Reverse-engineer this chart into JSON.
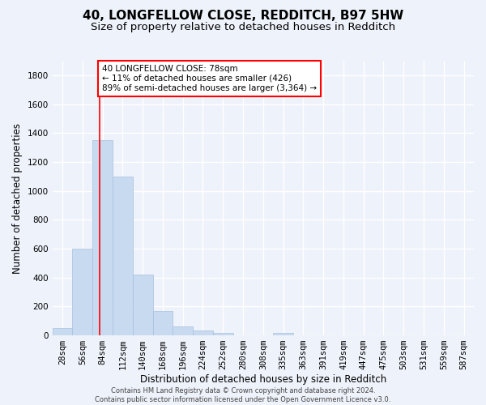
{
  "title_line1": "40, LONGFELLOW CLOSE, REDDITCH, B97 5HW",
  "title_line2": "Size of property relative to detached houses in Redditch",
  "xlabel": "Distribution of detached houses by size in Redditch",
  "ylabel": "Number of detached properties",
  "footnote": "Contains HM Land Registry data © Crown copyright and database right 2024.\nContains public sector information licensed under the Open Government Licence v3.0.",
  "bin_labels": [
    "28sqm",
    "56sqm",
    "84sqm",
    "112sqm",
    "140sqm",
    "168sqm",
    "196sqm",
    "224sqm",
    "252sqm",
    "280sqm",
    "308sqm",
    "335sqm",
    "363sqm",
    "391sqm",
    "419sqm",
    "447sqm",
    "475sqm",
    "503sqm",
    "531sqm",
    "559sqm",
    "587sqm"
  ],
  "bar_values": [
    50,
    600,
    1350,
    1100,
    420,
    170,
    60,
    35,
    20,
    0,
    0,
    20,
    0,
    0,
    0,
    0,
    0,
    0,
    0,
    0,
    0
  ],
  "bar_color": "#c8daf0",
  "bar_edge_color": "#a8c0de",
  "property_line_bin": 1.857,
  "annotation_text": "40 LONGFELLOW CLOSE: 78sqm\n← 11% of detached houses are smaller (426)\n89% of semi-detached houses are larger (3,364) →",
  "annotation_box_color": "white",
  "annotation_box_edge_color": "red",
  "vline_color": "red",
  "ylim": [
    0,
    1900
  ],
  "yticks": [
    0,
    200,
    400,
    600,
    800,
    1000,
    1200,
    1400,
    1600,
    1800
  ],
  "background_color": "#eef2fa",
  "grid_color": "white",
  "title_fontsize": 11,
  "subtitle_fontsize": 9.5,
  "axis_label_fontsize": 8.5,
  "tick_fontsize": 7.5,
  "footnote_fontsize": 6.0
}
